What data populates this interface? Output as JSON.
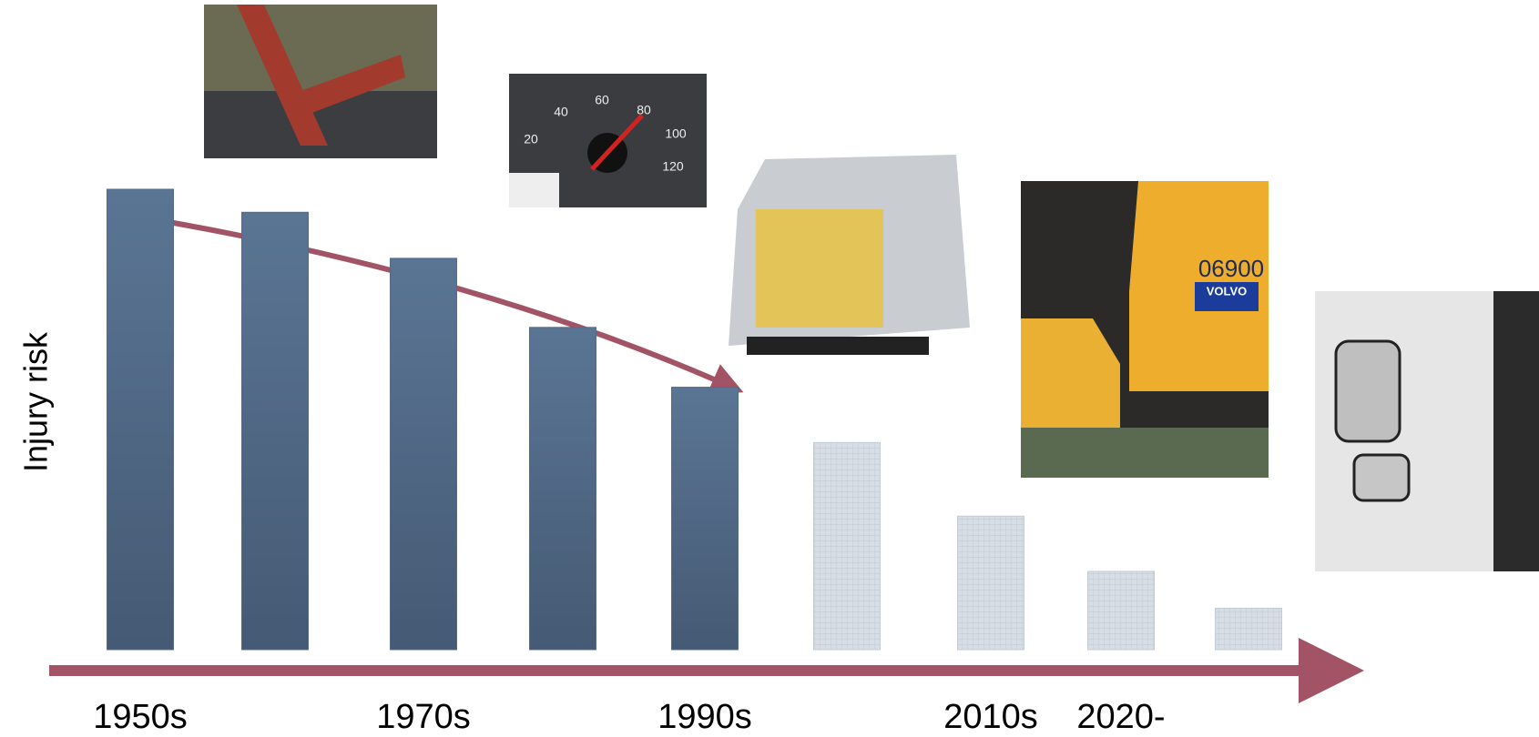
{
  "chart_data": {
    "type": "bar",
    "y_label": "Injury risk",
    "categories": [
      "1950s",
      null,
      "1970s",
      null,
      "1990s",
      null,
      "2010s",
      "2020-",
      null
    ],
    "values": [
      100,
      95,
      85,
      70,
      57,
      45,
      29,
      17,
      9
    ],
    "color": "#536b88",
    "ylim": [
      0,
      100
    ]
  },
  "photo_texts": {
    "speedometer": [
      20,
      40,
      60,
      80,
      100,
      120
    ],
    "truck_number": "06900",
    "brand": "VOLVO"
  }
}
